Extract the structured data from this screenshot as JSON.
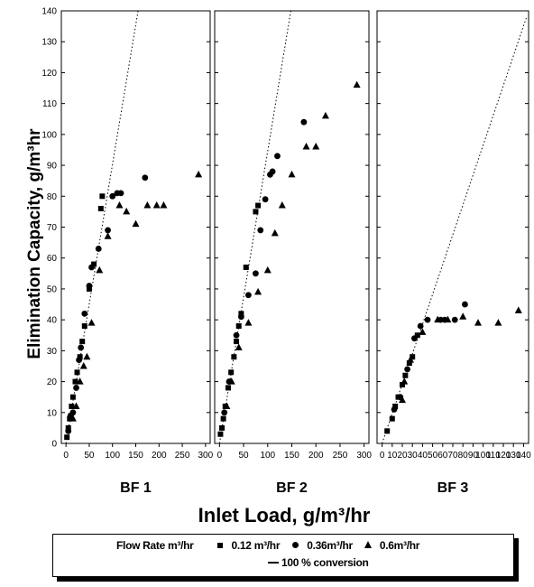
{
  "chart_data": {
    "type": "scatter",
    "xlabel": "Inlet Load, g/m³/hr",
    "ylabel": "Elimination Capacity, g/m³hr",
    "ylim": [
      0,
      140
    ],
    "yticks": [
      0,
      10,
      20,
      30,
      40,
      50,
      60,
      70,
      80,
      90,
      100,
      110,
      120,
      130,
      140
    ],
    "legend": {
      "title": "Flow Rate m³/hr",
      "entries": [
        "0.12 m³/hr",
        "0.36m³/hr",
        "0.6m³/hr",
        "100 % conversion"
      ],
      "placement": "bottom"
    },
    "panels": [
      {
        "label": "BF 1",
        "xlim": [
          -10,
          310
        ],
        "xticks": [
          0,
          50,
          100,
          150,
          200,
          250,
          300
        ],
        "reference_line": {
          "name": "100 % conversion",
          "points": [
            [
              0,
              0
            ],
            [
              155,
              140
            ]
          ]
        },
        "series": [
          {
            "name": "0.12 m³/hr",
            "marker": "square",
            "points": [
              [
                2,
                2
              ],
              [
                5,
                5
              ],
              [
                8,
                8
              ],
              [
                12,
                12
              ],
              [
                15,
                15
              ],
              [
                20,
                20
              ],
              [
                24,
                23
              ],
              [
                30,
                28
              ],
              [
                35,
                33
              ],
              [
                40,
                38
              ],
              [
                50,
                50
              ],
              [
                60,
                58
              ],
              [
                75,
                76
              ],
              [
                78,
                80
              ]
            ]
          },
          {
            "name": "0.36m³/hr",
            "marker": "circle",
            "points": [
              [
                5,
                4
              ],
              [
                10,
                9
              ],
              [
                15,
                10
              ],
              [
                22,
                18
              ],
              [
                28,
                27
              ],
              [
                32,
                31
              ],
              [
                40,
                42
              ],
              [
                50,
                51
              ],
              [
                55,
                57
              ],
              [
                70,
                63
              ],
              [
                90,
                69
              ],
              [
                100,
                80
              ],
              [
                110,
                81
              ],
              [
                118,
                81
              ],
              [
                170,
                86
              ]
            ]
          },
          {
            "name": "0.6m³/hr",
            "marker": "triangle",
            "points": [
              [
                15,
                8
              ],
              [
                22,
                12
              ],
              [
                30,
                20
              ],
              [
                38,
                25
              ],
              [
                45,
                28
              ],
              [
                55,
                39
              ],
              [
                72,
                56
              ],
              [
                90,
                67
              ],
              [
                115,
                77
              ],
              [
                130,
                75
              ],
              [
                150,
                71
              ],
              [
                175,
                77
              ],
              [
                195,
                77
              ],
              [
                210,
                77
              ],
              [
                285,
                87
              ]
            ]
          }
        ]
      },
      {
        "label": "BF 2",
        "xlim": [
          -10,
          310
        ],
        "xticks": [
          0,
          50,
          100,
          150,
          200,
          250,
          300
        ],
        "reference_line": {
          "name": "100 % conversion",
          "points": [
            [
              0,
              0
            ],
            [
              148,
              140
            ]
          ]
        },
        "series": [
          {
            "name": "0.12 m³/hr",
            "marker": "square",
            "points": [
              [
                2,
                3
              ],
              [
                5,
                5
              ],
              [
                8,
                8
              ],
              [
                12,
                12
              ],
              [
                18,
                18
              ],
              [
                24,
                23
              ],
              [
                30,
                28
              ],
              [
                35,
                33
              ],
              [
                40,
                38
              ],
              [
                45,
                42
              ],
              [
                55,
                57
              ],
              [
                75,
                75
              ],
              [
                80,
                77
              ]
            ]
          },
          {
            "name": "0.36m³/hr",
            "marker": "circle",
            "points": [
              [
                10,
                10
              ],
              [
                20,
                20
              ],
              [
                35,
                35
              ],
              [
                45,
                41
              ],
              [
                60,
                48
              ],
              [
                75,
                55
              ],
              [
                85,
                69
              ],
              [
                95,
                79
              ],
              [
                105,
                87
              ],
              [
                110,
                88
              ],
              [
                120,
                93
              ],
              [
                175,
                104
              ]
            ]
          },
          {
            "name": "0.6m³/hr",
            "marker": "triangle",
            "points": [
              [
                15,
                12
              ],
              [
                25,
                20
              ],
              [
                40,
                31
              ],
              [
                60,
                39
              ],
              [
                80,
                49
              ],
              [
                100,
                56
              ],
              [
                115,
                68
              ],
              [
                130,
                77
              ],
              [
                150,
                87
              ],
              [
                180,
                96
              ],
              [
                200,
                96
              ],
              [
                220,
                106
              ],
              [
                285,
                116
              ]
            ]
          }
        ]
      },
      {
        "label": "BF 3",
        "xlim": [
          -5,
          145
        ],
        "xticks": [
          0,
          10,
          20,
          30,
          40,
          50,
          60,
          70,
          80,
          90,
          100,
          110,
          120,
          130,
          140
        ],
        "reference_line": {
          "name": "100 % conversion",
          "points": [
            [
              0,
              0
            ],
            [
              143,
              138
            ]
          ]
        },
        "series": [
          {
            "name": "0.12 m³/hr",
            "marker": "square",
            "points": [
              [
                5,
                4
              ],
              [
                10,
                8
              ],
              [
                13,
                12
              ],
              [
                16,
                15
              ],
              [
                20,
                19
              ],
              [
                23,
                22
              ],
              [
                27,
                26
              ],
              [
                30,
                28
              ],
              [
                35,
                35
              ]
            ]
          },
          {
            "name": "0.36m³/hr",
            "marker": "circle",
            "points": [
              [
                12,
                11
              ],
              [
                18,
                15
              ],
              [
                25,
                24
              ],
              [
                32,
                34
              ],
              [
                38,
                38
              ],
              [
                45,
                40
              ],
              [
                58,
                40
              ],
              [
                62,
                40
              ],
              [
                72,
                40
              ],
              [
                82,
                45
              ]
            ]
          },
          {
            "name": "0.6m³/hr",
            "marker": "triangle",
            "points": [
              [
                20,
                14
              ],
              [
                22,
                20
              ],
              [
                28,
                27
              ],
              [
                40,
                36
              ],
              [
                55,
                40
              ],
              [
                65,
                40
              ],
              [
                80,
                41
              ],
              [
                95,
                39
              ],
              [
                115,
                39
              ],
              [
                135,
                43
              ]
            ]
          }
        ]
      }
    ]
  }
}
